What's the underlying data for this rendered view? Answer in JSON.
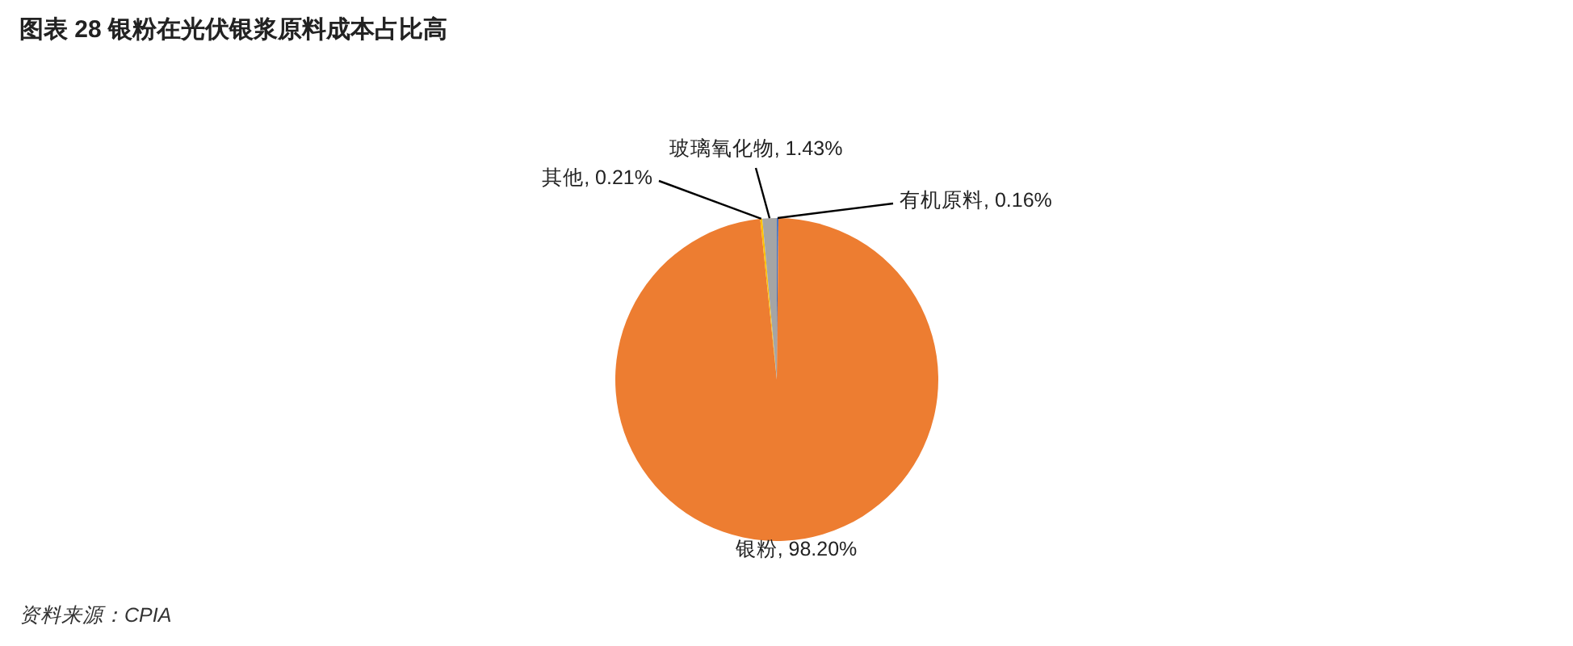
{
  "chart_data": {
    "type": "pie",
    "title": "图表 28   银粉在光伏银浆原料成本占比高",
    "categories": [
      "有机原料",
      "银粉",
      "其他",
      "玻璃氧化物"
    ],
    "values": [
      0.16,
      98.2,
      0.21,
      1.43
    ],
    "value_labels": [
      "0.16%",
      "98.20%",
      "0.21%",
      "1.43%"
    ],
    "colors": [
      "#4472c4",
      "#ed7d31",
      "#ffc000",
      "#a5a5a5"
    ],
    "annotations": [
      "资料来源：CPIA"
    ]
  }
}
